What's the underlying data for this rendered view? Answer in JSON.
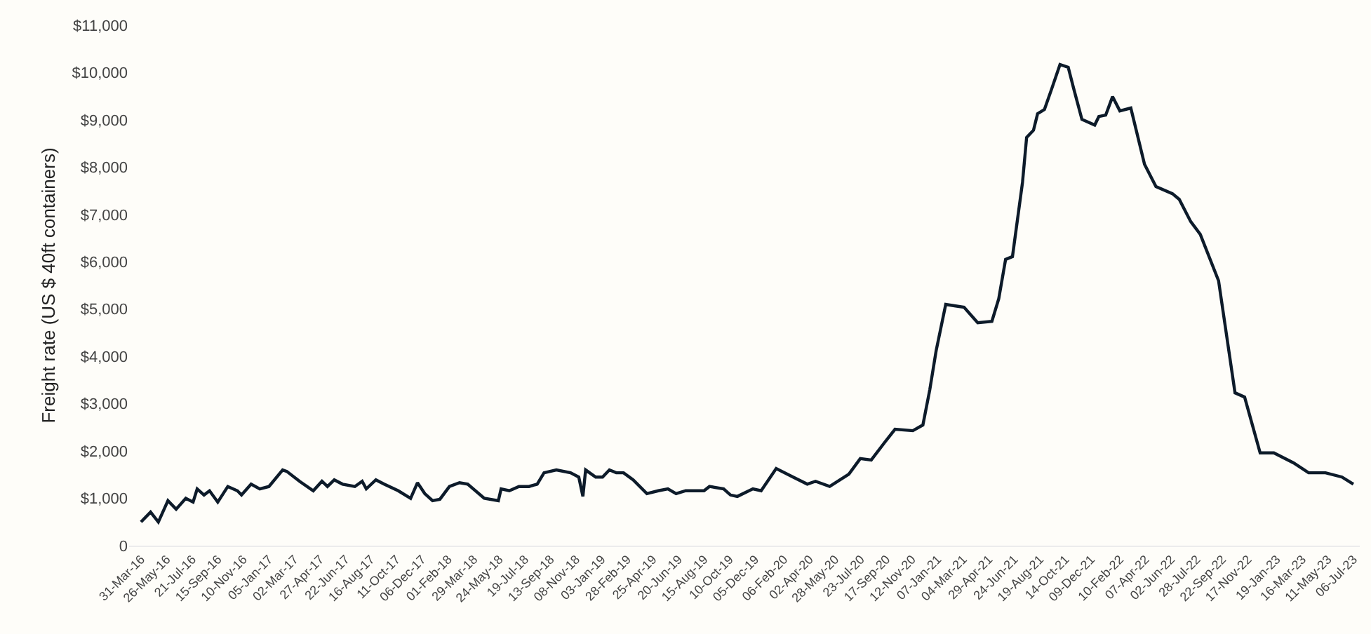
{
  "chart_data": {
    "type": "line",
    "ylabel": "Freight rate (US $ 40ft containers)",
    "grid": false,
    "marker": "none",
    "line_style": "solid",
    "xlim": [
      "2016-03-05",
      "2023-07-20"
    ],
    "ylim": [
      0,
      11000
    ],
    "yticks": [
      {
        "value": 0,
        "label": "0"
      },
      {
        "value": 1000,
        "label": "$1,000"
      },
      {
        "value": 2000,
        "label": "$2,000"
      },
      {
        "value": 3000,
        "label": "$3,000"
      },
      {
        "value": 4000,
        "label": "$4,000"
      },
      {
        "value": 5000,
        "label": "$5,000"
      },
      {
        "value": 6000,
        "label": "$6,000"
      },
      {
        "value": 7000,
        "label": "$7,000"
      },
      {
        "value": 8000,
        "label": "$8,000"
      },
      {
        "value": 9000,
        "label": "$9,000"
      },
      {
        "value": 10000,
        "label": "$10,000"
      },
      {
        "value": 11000,
        "label": "$11,000"
      }
    ],
    "xticks": [
      {
        "value": "2016-03-31",
        "label": "31-Mar-16"
      },
      {
        "value": "2016-05-26",
        "label": "26-May-16"
      },
      {
        "value": "2016-07-21",
        "label": "21-Jul-16"
      },
      {
        "value": "2016-09-15",
        "label": "15-Sep-16"
      },
      {
        "value": "2016-11-10",
        "label": "10-Nov-16"
      },
      {
        "value": "2017-01-05",
        "label": "05-Jan-17"
      },
      {
        "value": "2017-03-02",
        "label": "02-Mar-17"
      },
      {
        "value": "2017-04-27",
        "label": "27-Apr-17"
      },
      {
        "value": "2017-06-22",
        "label": "22-Jun-17"
      },
      {
        "value": "2017-08-16",
        "label": "16-Aug-17"
      },
      {
        "value": "2017-10-11",
        "label": "11-Oct-17"
      },
      {
        "value": "2017-12-06",
        "label": "06-Dec-17"
      },
      {
        "value": "2018-02-01",
        "label": "01-Feb-18"
      },
      {
        "value": "2018-03-29",
        "label": "29-Mar-18"
      },
      {
        "value": "2018-05-24",
        "label": "24-May-18"
      },
      {
        "value": "2018-07-19",
        "label": "19-Jul-18"
      },
      {
        "value": "2018-09-13",
        "label": "13-Sep-18"
      },
      {
        "value": "2018-11-08",
        "label": "08-Nov-18"
      },
      {
        "value": "2019-01-03",
        "label": "03-Jan-19"
      },
      {
        "value": "2019-02-28",
        "label": "28-Feb-19"
      },
      {
        "value": "2019-04-25",
        "label": "25-Apr-19"
      },
      {
        "value": "2019-06-20",
        "label": "20-Jun-19"
      },
      {
        "value": "2019-08-15",
        "label": "15-Aug-19"
      },
      {
        "value": "2019-10-10",
        "label": "10-Oct-19"
      },
      {
        "value": "2019-12-05",
        "label": "05-Dec-19"
      },
      {
        "value": "2020-02-06",
        "label": "06-Feb-20"
      },
      {
        "value": "2020-04-02",
        "label": "02-Apr-20"
      },
      {
        "value": "2020-05-28",
        "label": "28-May-20"
      },
      {
        "value": "2020-07-23",
        "label": "23-Jul-20"
      },
      {
        "value": "2020-09-17",
        "label": "17-Sep-20"
      },
      {
        "value": "2020-11-12",
        "label": "12-Nov-20"
      },
      {
        "value": "2021-01-07",
        "label": "07-Jan-21"
      },
      {
        "value": "2021-03-04",
        "label": "04-Mar-21"
      },
      {
        "value": "2021-04-29",
        "label": "29-Apr-21"
      },
      {
        "value": "2021-06-24",
        "label": "24-Jun-21"
      },
      {
        "value": "2021-08-19",
        "label": "19-Aug-21"
      },
      {
        "value": "2021-10-14",
        "label": "14-Oct-21"
      },
      {
        "value": "2021-12-09",
        "label": "09-Dec-21"
      },
      {
        "value": "2022-02-10",
        "label": "10-Feb-22"
      },
      {
        "value": "2022-04-07",
        "label": "07-Apr-22"
      },
      {
        "value": "2022-06-02",
        "label": "02-Jun-22"
      },
      {
        "value": "2022-07-28",
        "label": "28-Jul-22"
      },
      {
        "value": "2022-09-22",
        "label": "22-Sep-22"
      },
      {
        "value": "2022-11-17",
        "label": "17-Nov-22"
      },
      {
        "value": "2023-01-19",
        "label": "19-Jan-23"
      },
      {
        "value": "2023-03-16",
        "label": "16-Mar-23"
      },
      {
        "value": "2023-05-11",
        "label": "11-May-23"
      },
      {
        "value": "2023-07-06",
        "label": "06-Jul-23"
      }
    ],
    "x": [
      "2016-03-31",
      "2016-04-21",
      "2016-05-08",
      "2016-05-29",
      "2016-06-16",
      "2016-07-07",
      "2016-07-23",
      "2016-08-01",
      "2016-08-16",
      "2016-08-28",
      "2016-09-15",
      "2016-10-07",
      "2016-10-28",
      "2016-11-06",
      "2016-11-27",
      "2016-12-16",
      "2017-01-05",
      "2017-02-04",
      "2017-02-13",
      "2017-03-13",
      "2017-04-12",
      "2017-05-01",
      "2017-05-13",
      "2017-05-28",
      "2017-06-15",
      "2017-07-12",
      "2017-07-28",
      "2017-08-06",
      "2017-08-27",
      "2017-09-14",
      "2017-10-15",
      "2017-11-11",
      "2017-11-26",
      "2017-12-12",
      "2017-12-29",
      "2018-01-14",
      "2018-02-04",
      "2018-02-26",
      "2018-03-16",
      "2018-04-21",
      "2018-05-22",
      "2018-05-28",
      "2018-06-15",
      "2018-07-06",
      "2018-07-28",
      "2018-08-15",
      "2018-08-30",
      "2018-09-26",
      "2018-10-27",
      "2018-11-14",
      "2018-11-23",
      "2018-11-29",
      "2018-12-21",
      "2019-01-05",
      "2019-01-20",
      "2019-02-04",
      "2019-02-20",
      "2019-03-13",
      "2019-04-12",
      "2019-05-07",
      "2019-05-28",
      "2019-06-15",
      "2019-07-06",
      "2019-08-15",
      "2019-08-27",
      "2019-09-27",
      "2019-10-12",
      "2019-10-27",
      "2019-11-30",
      "2019-12-18",
      "2020-01-20",
      "2020-02-26",
      "2020-03-28",
      "2020-04-15",
      "2020-05-16",
      "2020-06-27",
      "2020-07-22",
      "2020-08-15",
      "2020-09-14",
      "2020-10-06",
      "2020-11-14",
      "2020-12-06",
      "2020-12-21",
      "2021-01-04",
      "2021-01-25",
      "2021-02-13",
      "2021-03-06",
      "2021-04-05",
      "2021-05-06",
      "2021-05-21",
      "2021-06-05",
      "2021-06-20",
      "2021-07-12",
      "2021-07-21",
      "2021-08-05",
      "2021-08-14",
      "2021-08-29",
      "2021-09-14",
      "2021-10-02",
      "2021-10-20",
      "2021-11-01",
      "2021-11-19",
      "2021-12-17",
      "2021-12-26",
      "2022-01-10",
      "2022-01-25",
      "2022-02-10",
      "2022-03-06",
      "2022-04-05",
      "2022-04-30",
      "2022-06-05",
      "2022-06-20",
      "2022-07-15",
      "2022-08-05",
      "2022-09-14",
      "2022-10-20",
      "2022-11-10",
      "2022-12-14",
      "2023-01-13",
      "2023-02-25",
      "2023-03-30",
      "2023-05-06",
      "2023-06-11",
      "2023-07-06"
    ],
    "series": [
      {
        "color": "#0d1b2a",
        "values": [
          500,
          710,
          500,
          950,
          770,
          1000,
          920,
          1200,
          1070,
          1160,
          920,
          1250,
          1160,
          1070,
          1300,
          1200,
          1250,
          1600,
          1570,
          1360,
          1160,
          1360,
          1250,
          1390,
          1300,
          1250,
          1360,
          1200,
          1390,
          1300,
          1160,
          1000,
          1330,
          1100,
          950,
          980,
          1250,
          1330,
          1300,
          1000,
          950,
          1200,
          1160,
          1250,
          1250,
          1300,
          1540,
          1600,
          1540,
          1450,
          1040,
          1600,
          1450,
          1450,
          1600,
          1540,
          1540,
          1390,
          1100,
          1160,
          1200,
          1100,
          1160,
          1160,
          1250,
          1200,
          1070,
          1040,
          1200,
          1160,
          1630,
          1450,
          1300,
          1360,
          1250,
          1510,
          1840,
          1810,
          2190,
          2460,
          2430,
          2550,
          3290,
          4120,
          5100,
          5070,
          5040,
          4710,
          4740,
          5220,
          6050,
          6110,
          7680,
          8630,
          8780,
          9130,
          9220,
          9660,
          10170,
          10110,
          9660,
          9010,
          8890,
          9070,
          9100,
          9490,
          9190,
          9250,
          8060,
          7590,
          7440,
          7320,
          6850,
          6580,
          5600,
          3230,
          3140,
          1960,
          1960,
          1750,
          1540,
          1540,
          1450,
          1300
        ]
      }
    ]
  }
}
